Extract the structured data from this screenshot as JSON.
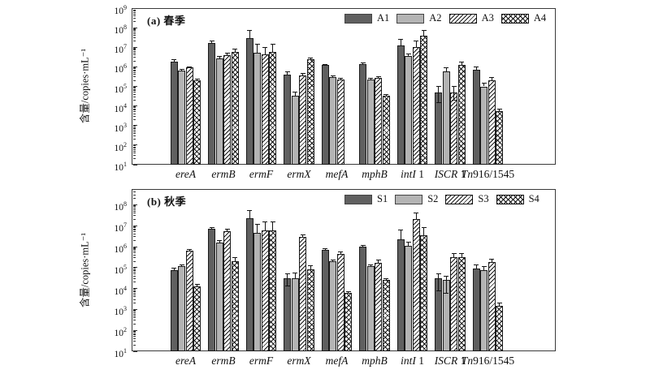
{
  "figure": {
    "background": "#ffffff",
    "ylabel": "含量/copies·mL⁻¹",
    "axis_color": "#333333",
    "bar_border_color": "#1a1a1a",
    "series_fills": {
      "dark": "#606060",
      "light": "#b4b4b4",
      "hatch": "#ffffff",
      "cross": "#ffffff"
    }
  },
  "chart_data": [
    {
      "type": "bar",
      "panel_label": "(a) 春季",
      "yscale": "log",
      "ylim": [
        10,
        1000000000
      ],
      "ytick_exponents": [
        1,
        2,
        3,
        4,
        5,
        6,
        7,
        8,
        9
      ],
      "legend_position": "top-right",
      "grid": false,
      "categories": [
        {
          "italic": "ereA",
          "roman": ""
        },
        {
          "italic": "ermB",
          "roman": ""
        },
        {
          "italic": "ermF",
          "roman": ""
        },
        {
          "italic": "ermX",
          "roman": ""
        },
        {
          "italic": "mefA",
          "roman": ""
        },
        {
          "italic": "mphB",
          "roman": ""
        },
        {
          "italic": "intI",
          "roman": " 1"
        },
        {
          "italic": "ISCR",
          "roman": " 1"
        },
        {
          "italic": "Tn",
          "roman": "916/1545"
        }
      ],
      "series": [
        {
          "name": "A1",
          "style": "dark",
          "values": [
            1900000.0,
            17000000.0,
            28000000.0,
            400000.0,
            1200000.0,
            1400000.0,
            12000000.0,
            50000.0,
            700000.0
          ],
          "err_hi": [
            2300000.0,
            20000000.0,
            70000000.0,
            550000.0,
            1350000.0,
            1550000.0,
            25000000.0,
            100000.0,
            1000000.0
          ],
          "err_lo": [
            null,
            null,
            null,
            null,
            null,
            null,
            null,
            15000.0,
            null
          ]
        },
        {
          "name": "A2",
          "style": "light",
          "values": [
            630000.0,
            2800000.0,
            5500000.0,
            32000.0,
            300000.0,
            230000.0,
            3500000.0,
            600000.0,
            100000.0
          ],
          "err_hi": [
            730000.0,
            3400000.0,
            14000000.0,
            50000.0,
            340000.0,
            260000.0,
            4500000.0,
            900000.0,
            140000.0
          ],
          "err_lo": [
            null,
            null,
            null,
            null,
            null,
            null,
            null,
            null,
            null
          ]
        },
        {
          "name": "A3",
          "style": "hatch",
          "values": [
            900000.0,
            4000000.0,
            4500000.0,
            350000.0,
            220000.0,
            270000.0,
            10000000.0,
            50000.0,
            200000.0
          ],
          "err_hi": [
            1000000.0,
            4800000.0,
            10000000.0,
            450000.0,
            250000.0,
            320000.0,
            20000000.0,
            100000.0,
            280000.0
          ],
          "err_lo": [
            null,
            null,
            null,
            null,
            null,
            null,
            null,
            20000.0,
            null
          ]
        },
        {
          "name": "A4",
          "style": "cross",
          "values": [
            200000.0,
            6000000.0,
            6000000.0,
            2500000.0,
            null,
            33000.0,
            40000000.0,
            1300000.0,
            5500.0
          ],
          "err_hi": [
            230000.0,
            8000000.0,
            15000000.0,
            2900000.0,
            null,
            39000.0,
            70000000.0,
            1800000.0,
            7000.0
          ],
          "err_lo": [
            null,
            null,
            null,
            null,
            null,
            null,
            null,
            null,
            null
          ]
        }
      ]
    },
    {
      "type": "bar",
      "panel_label": "(b) 秋季",
      "yscale": "log",
      "ylim": [
        10,
        100000000
      ],
      "ytick_exponents": [
        1,
        2,
        3,
        4,
        5,
        6,
        7,
        8
      ],
      "legend_position": "top-right",
      "grid": false,
      "categories": [
        {
          "italic": "ereA",
          "roman": ""
        },
        {
          "italic": "ermB",
          "roman": ""
        },
        {
          "italic": "ermF",
          "roman": ""
        },
        {
          "italic": "ermX",
          "roman": ""
        },
        {
          "italic": "mefA",
          "roman": ""
        },
        {
          "italic": "mphB",
          "roman": ""
        },
        {
          "italic": "intI",
          "roman": " 1"
        },
        {
          "italic": "ISCR",
          "roman": " 1"
        },
        {
          "italic": "Tn",
          "roman": "916/1545"
        }
      ],
      "series": [
        {
          "name": "S1",
          "style": "dark",
          "values": [
            75000.0,
            7000000.0,
            22000000.0,
            30000.0,
            700000.0,
            1000000.0,
            2200000.0,
            30000.0,
            90000.0
          ],
          "err_hi": [
            90000.0,
            8500000.0,
            55000000.0,
            50000.0,
            800000.0,
            1150000.0,
            6000000.0,
            50000.0,
            130000.0
          ],
          "err_lo": [
            null,
            null,
            null,
            13000.0,
            null,
            null,
            null,
            8000.0,
            null
          ]
        },
        {
          "name": "S2",
          "style": "light",
          "values": [
            120000.0,
            1500000.0,
            4500000.0,
            30000.0,
            200000.0,
            120000.0,
            1100000.0,
            25000.0,
            75000.0
          ],
          "err_hi": [
            140000.0,
            2000000.0,
            12000000.0,
            55000.0,
            230000.0,
            140000.0,
            1600000.0,
            40000.0,
            110000.0
          ],
          "err_lo": [
            null,
            null,
            null,
            null,
            null,
            null,
            null,
            6000.0,
            null
          ]
        },
        {
          "name": "S3",
          "style": "hatch",
          "values": [
            650000.0,
            5500000.0,
            6000000.0,
            3000000.0,
            450000.0,
            170000.0,
            20000000.0,
            300000.0,
            180000.0
          ],
          "err_hi": [
            750000.0,
            7000000.0,
            15000000.0,
            3500000.0,
            550000.0,
            220000.0,
            40000000.0,
            450000.0,
            250000.0
          ],
          "err_lo": [
            null,
            null,
            null,
            null,
            null,
            null,
            null,
            null,
            null
          ]
        },
        {
          "name": "S4",
          "style": "cross",
          "values": [
            13000.0,
            200000.0,
            6000000.0,
            80000.0,
            6000.0,
            25000.0,
            3500000.0,
            320000.0,
            1500.0
          ],
          "err_hi": [
            16000.0,
            300000.0,
            15000000.0,
            120000.0,
            7000.0,
            30000.0,
            8000000.0,
            480000.0,
            2000.0
          ],
          "err_lo": [
            null,
            null,
            null,
            null,
            null,
            null,
            null,
            null,
            null
          ]
        }
      ]
    }
  ]
}
